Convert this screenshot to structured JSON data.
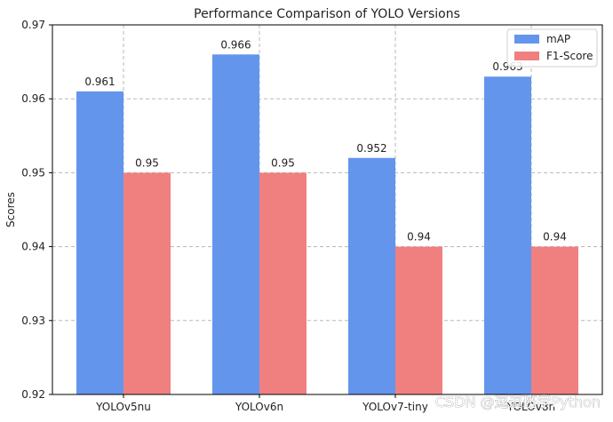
{
  "chart_data": {
    "type": "bar",
    "title": "Performance Comparison of YOLO Versions",
    "xlabel": "",
    "ylabel": "Scores",
    "categories": [
      "YOLOv5nu",
      "YOLOv6n",
      "YOLOv7-tiny",
      "YOLOv8n"
    ],
    "series": [
      {
        "name": "mAP",
        "color": "#6495ED",
        "values": [
          0.961,
          0.966,
          0.952,
          0.963
        ],
        "labels": [
          "0.961",
          "0.966",
          "0.952",
          "0.963"
        ]
      },
      {
        "name": "F1-Score",
        "color": "#F08080",
        "values": [
          0.95,
          0.95,
          0.94,
          0.94
        ],
        "labels": [
          "0.95",
          "0.95",
          "0.94",
          "0.94"
        ]
      }
    ],
    "ylim": [
      0.92,
      0.97
    ],
    "yticks": [
      0.92,
      0.93,
      0.94,
      0.95,
      0.96,
      0.97
    ],
    "ytick_labels": [
      "0.92",
      "0.93",
      "0.94",
      "0.95",
      "0.96",
      "0.97"
    ],
    "grid": true,
    "legend_position": "top-right"
  },
  "watermark": "CSDN @逗逗班学Python"
}
